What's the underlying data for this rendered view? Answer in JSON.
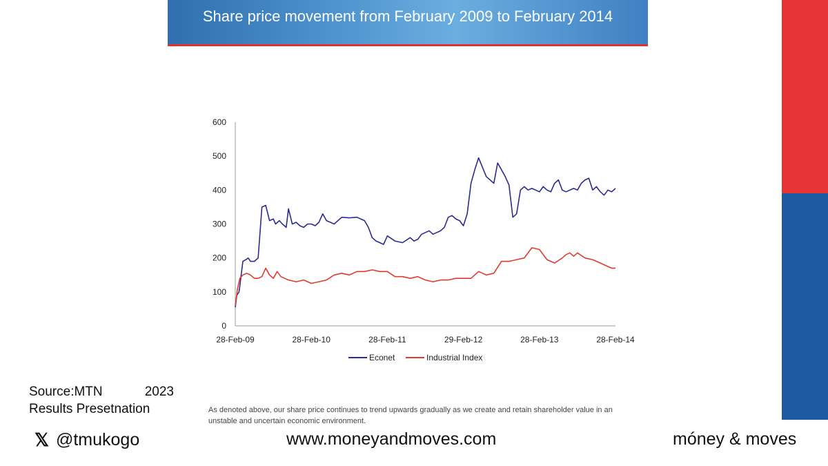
{
  "banner": {
    "title": "Share price movement from February 2009 to February 2014"
  },
  "source": {
    "line1_left": "Source:MTN",
    "line1_right": "2023",
    "line2": "Results Presetnation"
  },
  "caption": "As denoted above, our share price continues to trend upwards gradually as we create and retain shareholder value in an unstable and uncertain economic environment.",
  "footer": {
    "handle": "@tmukogo",
    "site": "www.moneyandmoves.com",
    "brand": "móney & moves",
    "x_icon": "x-logo-icon"
  },
  "colors": {
    "econet": "#2b2b8f",
    "industrial": "#e03a2f",
    "banner": "#4f93cf",
    "accent_red": "#e63434",
    "accent_blue": "#1e5aa0"
  },
  "chart_data": {
    "type": "line",
    "x_tick_labels": [
      "28-Feb-09",
      "28-Feb-10",
      "28-Feb-11",
      "29-Feb-12",
      "28-Feb-13",
      "28-Feb-14"
    ],
    "y_ticks": [
      0,
      100,
      200,
      300,
      400,
      500,
      600
    ],
    "ylim": [
      0,
      600
    ],
    "xlim": [
      2009.0,
      2014.0
    ],
    "legend_position": "bottom",
    "series": [
      {
        "name": "Econet",
        "color": "#2b2b8f",
        "x": [
          2009.0,
          2009.02,
          2009.05,
          2009.1,
          2009.14,
          2009.17,
          2009.2,
          2009.25,
          2009.3,
          2009.35,
          2009.4,
          2009.45,
          2009.5,
          2009.53,
          2009.58,
          2009.62,
          2009.67,
          2009.7,
          2009.75,
          2009.8,
          2009.85,
          2009.9,
          2009.95,
          2010.0,
          2010.05,
          2010.1,
          2010.15,
          2010.2,
          2010.25,
          2010.3,
          2010.4,
          2010.5,
          2010.6,
          2010.7,
          2010.75,
          2010.8,
          2010.85,
          2010.9,
          2010.95,
          2011.0,
          2011.1,
          2011.2,
          2011.3,
          2011.35,
          2011.4,
          2011.45,
          2011.5,
          2011.55,
          2011.6,
          2011.65,
          2011.7,
          2011.75,
          2011.8,
          2011.85,
          2011.9,
          2011.95,
          2012.0,
          2012.05,
          2012.1,
          2012.15,
          2012.2,
          2012.3,
          2012.4,
          2012.45,
          2012.5,
          2012.55,
          2012.6,
          2012.65,
          2012.7,
          2012.75,
          2012.8,
          2012.85,
          2012.9,
          2012.95,
          2013.0,
          2013.05,
          2013.1,
          2013.15,
          2013.2,
          2013.25,
          2013.3,
          2013.35,
          2013.4,
          2013.45,
          2013.5,
          2013.55,
          2013.6,
          2013.65,
          2013.7,
          2013.75,
          2013.8,
          2013.85,
          2013.9,
          2013.95,
          2014.0
        ],
        "y": [
          55,
          90,
          100,
          190,
          195,
          200,
          190,
          190,
          200,
          350,
          355,
          310,
          315,
          300,
          310,
          300,
          290,
          345,
          300,
          305,
          295,
          290,
          300,
          300,
          295,
          305,
          330,
          310,
          305,
          300,
          320,
          318,
          320,
          310,
          290,
          260,
          250,
          245,
          240,
          265,
          250,
          245,
          260,
          250,
          255,
          270,
          275,
          280,
          270,
          275,
          280,
          290,
          320,
          325,
          315,
          310,
          295,
          330,
          420,
          460,
          495,
          440,
          420,
          480,
          460,
          440,
          415,
          320,
          330,
          400,
          410,
          400,
          405,
          400,
          395,
          410,
          400,
          395,
          420,
          430,
          400,
          395,
          400,
          405,
          400,
          420,
          430,
          435,
          400,
          410,
          395,
          385,
          400,
          395,
          405
        ],
        "_note": ""
      },
      {
        "name": "Industrial Index",
        "color": "#e03a2f",
        "x": [
          2009.0,
          2009.03,
          2009.06,
          2009.1,
          2009.15,
          2009.2,
          2009.25,
          2009.3,
          2009.35,
          2009.4,
          2009.45,
          2009.5,
          2009.55,
          2009.6,
          2009.65,
          2009.7,
          2009.8,
          2009.9,
          2010.0,
          2010.1,
          2010.2,
          2010.3,
          2010.4,
          2010.5,
          2010.6,
          2010.7,
          2010.8,
          2010.9,
          2011.0,
          2011.1,
          2011.2,
          2011.3,
          2011.4,
          2011.5,
          2011.6,
          2011.7,
          2011.8,
          2011.9,
          2012.0,
          2012.1,
          2012.2,
          2012.3,
          2012.4,
          2012.5,
          2012.6,
          2012.7,
          2012.8,
          2012.9,
          2013.0,
          2013.1,
          2013.2,
          2013.3,
          2013.35,
          2013.4,
          2013.45,
          2013.5,
          2013.6,
          2013.7,
          2013.8,
          2013.85,
          2013.9,
          2013.95,
          2014.0
        ],
        "y": [
          60,
          110,
          140,
          150,
          155,
          150,
          140,
          140,
          145,
          170,
          150,
          140,
          160,
          145,
          140,
          135,
          130,
          135,
          125,
          130,
          135,
          150,
          155,
          150,
          160,
          160,
          165,
          160,
          160,
          145,
          145,
          140,
          145,
          135,
          130,
          135,
          135,
          140,
          140,
          140,
          160,
          150,
          155,
          190,
          190,
          195,
          200,
          230,
          225,
          195,
          185,
          200,
          210,
          215,
          205,
          215,
          200,
          195,
          185,
          180,
          175,
          170,
          170
        ],
        "_note": ""
      }
    ]
  }
}
